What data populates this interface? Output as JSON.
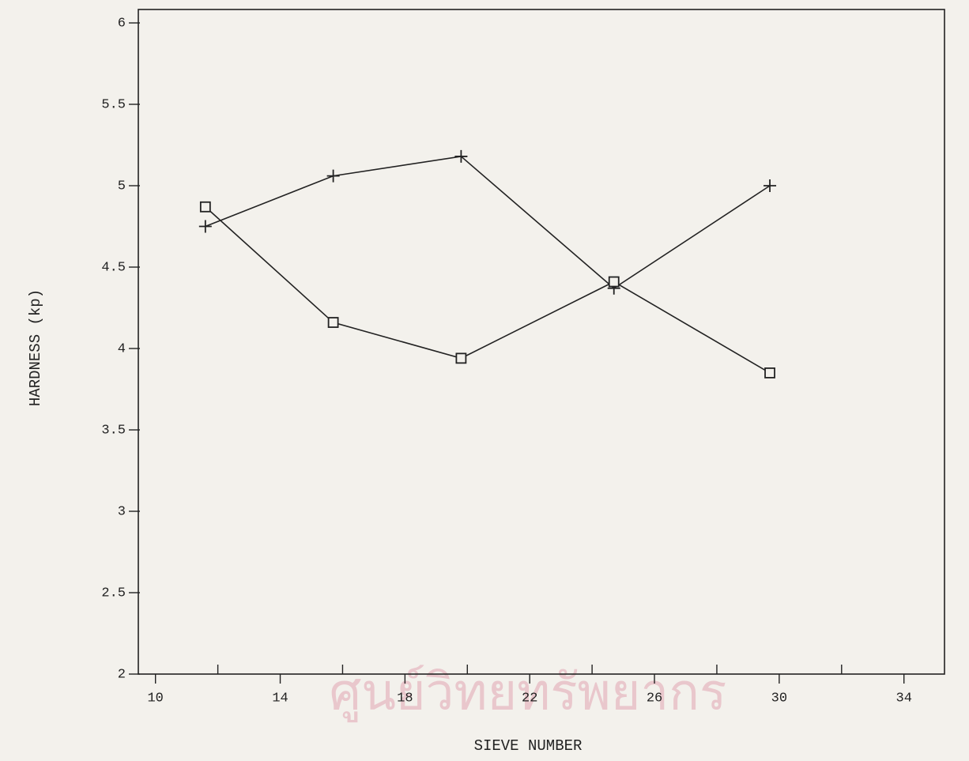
{
  "chart_data": {
    "type": "line",
    "x_label": "SIEVE NUMBER",
    "y_label": "HARDNESS (kp)",
    "annotations": [
      "ศูนย์วิทยทรัพยากร"
    ],
    "x": [
      11.6,
      15.7,
      19.8,
      24.7,
      29.7
    ],
    "series": [
      {
        "marker": "plus",
        "color": "#222222",
        "values": [
          4.75,
          5.06,
          5.18,
          4.37,
          5.0
        ]
      },
      {
        "marker": "square",
        "color": "#222222",
        "values": [
          4.87,
          4.16,
          3.94,
          4.41,
          3.85
        ]
      }
    ],
    "xlim": [
      9.45,
      35.3
    ],
    "xticks": [
      10,
      14,
      18,
      22,
      26,
      30,
      34
    ],
    "xminorticks": [
      12,
      16,
      20,
      24,
      28,
      32
    ],
    "ylim": [
      2,
      6
    ],
    "yticks": [
      2,
      2.5,
      3,
      3.5,
      4,
      4.5,
      5,
      5.5,
      6
    ],
    "grid": false
  }
}
